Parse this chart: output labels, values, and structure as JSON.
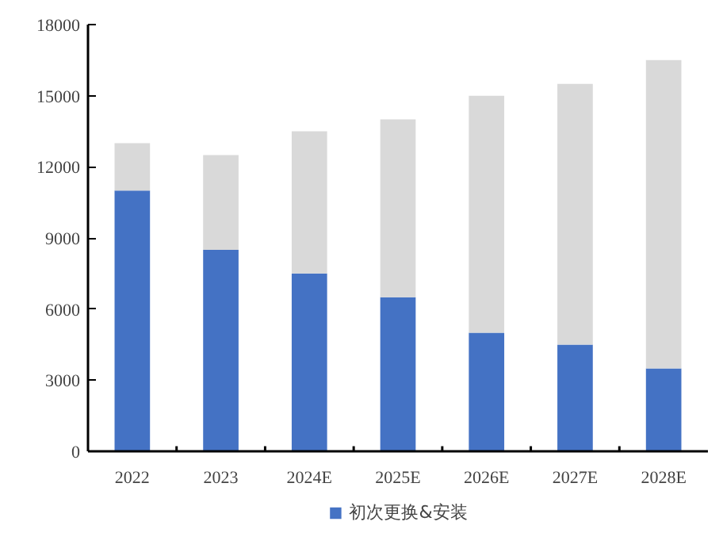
{
  "chart_data": {
    "type": "bar",
    "stacked": true,
    "categories": [
      "2022",
      "2023",
      "2024E",
      "2025E",
      "2026E",
      "2027E",
      "2028E"
    ],
    "series": [
      {
        "name": "初次更换&安装",
        "color": "#4472c4",
        "values": [
          11000,
          8500,
          7500,
          6500,
          5000,
          4500,
          3500
        ]
      },
      {
        "color": "#d9d9d9",
        "values": [
          2000,
          4000,
          6000,
          7500,
          10000,
          11000,
          13000
        ]
      }
    ],
    "ylim": [
      0,
      18000
    ],
    "yticks": [
      0,
      3000,
      6000,
      9000,
      12000,
      15000,
      18000
    ],
    "grid": false,
    "legend": "bottom"
  }
}
